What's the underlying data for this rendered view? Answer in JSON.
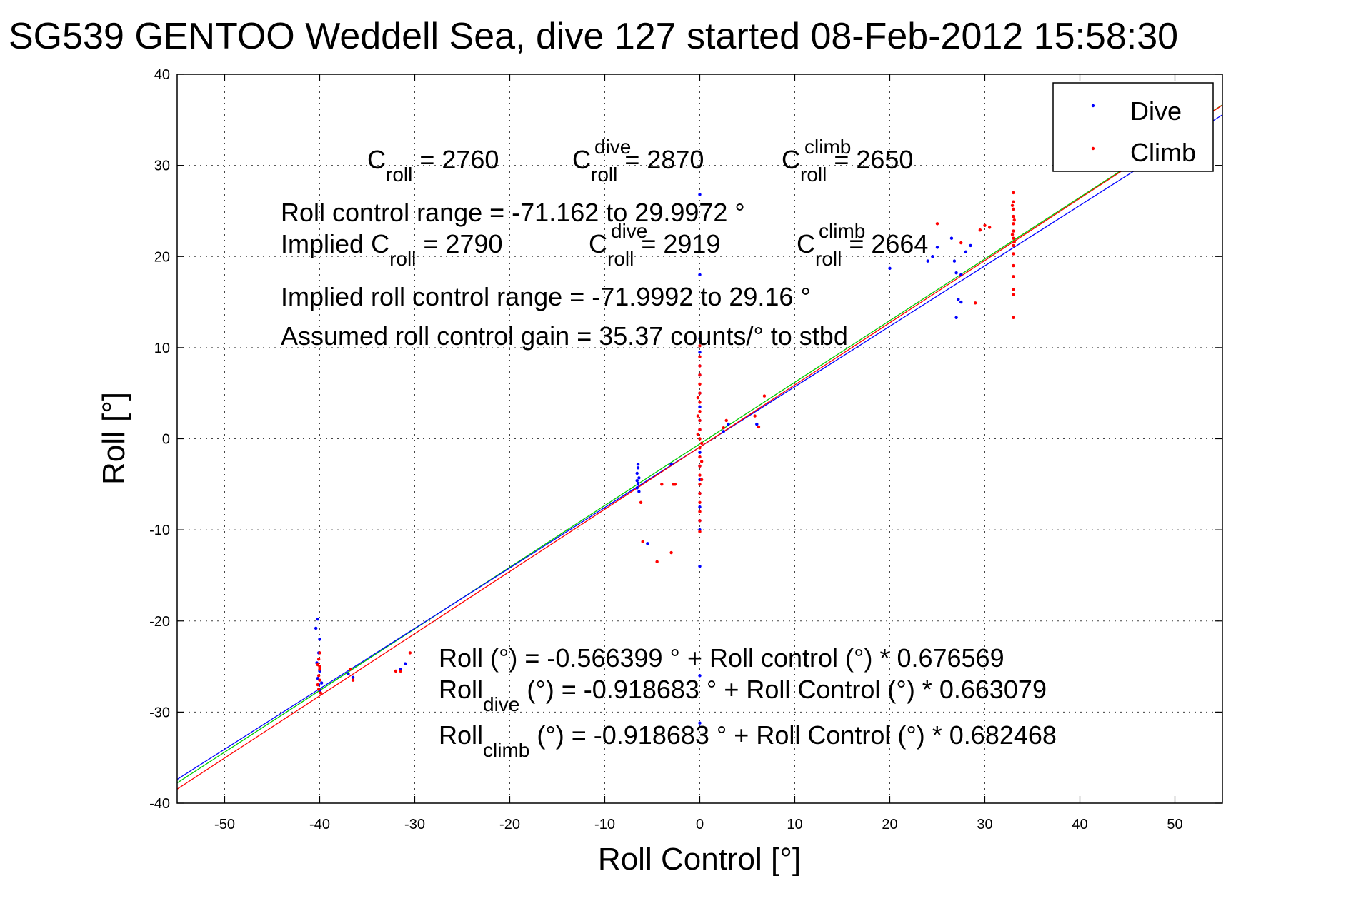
{
  "chart_data": {
    "type": "scatter",
    "title": "SG539 GENTOO Weddell Sea, dive 127 started 08-Feb-2012 15:58:30",
    "xlabel": "Roll Control [°]",
    "ylabel": "Roll [°]",
    "xlim": [
      -55,
      55
    ],
    "ylim": [
      -40,
      40
    ],
    "x_ticks": [
      -50,
      -40,
      -30,
      -20,
      -10,
      0,
      10,
      20,
      30,
      40,
      50
    ],
    "y_ticks": [
      -40,
      -30,
      -20,
      -10,
      0,
      10,
      20,
      30,
      40
    ],
    "grid": true,
    "legend": {
      "placement": "top-right",
      "entries": [
        "Dive",
        "Climb"
      ]
    },
    "colors": {
      "dive": "#0000ff",
      "climb": "#ff0000",
      "fit_all": "#00cc00",
      "fit_dive": "#0000ff",
      "fit_climb": "#ff0000"
    },
    "series": [
      {
        "name": "Dive",
        "color": "#0000ff",
        "points": [
          [
            -40.2,
            -19.8
          ],
          [
            -40.4,
            -20.8
          ],
          [
            -40.0,
            -22.0
          ],
          [
            -40.1,
            -23.5
          ],
          [
            -40.3,
            -24.6
          ],
          [
            -40.0,
            -25.5
          ],
          [
            -40.2,
            -26.3
          ],
          [
            -40.1,
            -27.0
          ],
          [
            -40.0,
            -27.6
          ],
          [
            -39.8,
            -26.8
          ],
          [
            -37.0,
            -25.8
          ],
          [
            -36.5,
            -26.2
          ],
          [
            -31.5,
            -25.3
          ],
          [
            -31.0,
            -24.7
          ],
          [
            -6.5,
            -3.2
          ],
          [
            -6.6,
            -3.8
          ],
          [
            -6.4,
            -4.3
          ],
          [
            -6.5,
            -4.9
          ],
          [
            -6.6,
            -5.4
          ],
          [
            -6.4,
            -5.8
          ],
          [
            -6.5,
            -2.8
          ],
          [
            -6.6,
            -4.6
          ],
          [
            -5.5,
            -11.5
          ],
          [
            -3.0,
            -2.8
          ],
          [
            0.0,
            26.8
          ],
          [
            0.0,
            18.0
          ],
          [
            0.0,
            11.0
          ],
          [
            0.0,
            9.5
          ],
          [
            0.0,
            8.0
          ],
          [
            0.0,
            7.0
          ],
          [
            0.0,
            5.0
          ],
          [
            0.0,
            3.5
          ],
          [
            0.0,
            2.0
          ],
          [
            0.0,
            1.0
          ],
          [
            0.0,
            -1.5
          ],
          [
            0.0,
            -3.0
          ],
          [
            0.0,
            -4.5
          ],
          [
            0.0,
            -6.0
          ],
          [
            0.0,
            -7.5
          ],
          [
            0.0,
            -9.0
          ],
          [
            0.0,
            -10.0
          ],
          [
            0.0,
            -14.0
          ],
          [
            0.0,
            -26.0
          ],
          [
            0.0,
            -31.2
          ],
          [
            2.5,
            0.8
          ],
          [
            3.0,
            1.6
          ],
          [
            6.0,
            1.6
          ],
          [
            20.0,
            18.7
          ],
          [
            24.0,
            19.5
          ],
          [
            24.5,
            20.0
          ],
          [
            25.0,
            21.0
          ],
          [
            26.5,
            22.0
          ],
          [
            26.8,
            19.5
          ],
          [
            27.0,
            18.2
          ],
          [
            27.2,
            15.3
          ],
          [
            27.5,
            15.0
          ],
          [
            27.0,
            13.3
          ],
          [
            27.5,
            18.0
          ],
          [
            28.0,
            20.5
          ],
          [
            28.5,
            21.2
          ]
        ]
      },
      {
        "name": "Climb",
        "color": "#ff0000",
        "points": [
          [
            -40.0,
            -23.5
          ],
          [
            -40.1,
            -24.2
          ],
          [
            -40.2,
            -24.8
          ],
          [
            -40.0,
            -25.3
          ],
          [
            -40.1,
            -26.0
          ],
          [
            -40.0,
            -26.5
          ],
          [
            -40.2,
            -27.0
          ],
          [
            -40.1,
            -27.5
          ],
          [
            -39.9,
            -27.9
          ],
          [
            -40.0,
            -25.0
          ],
          [
            -36.8,
            -25.3
          ],
          [
            -36.5,
            -26.5
          ],
          [
            -32.0,
            -25.5
          ],
          [
            -31.5,
            -25.5
          ],
          [
            -30.5,
            -23.5
          ],
          [
            -6.2,
            -7.0
          ],
          [
            -6.0,
            -11.3
          ],
          [
            -4.5,
            -13.5
          ],
          [
            -4.0,
            -5.0
          ],
          [
            -3.0,
            -12.5
          ],
          [
            -2.8,
            -5.0
          ],
          [
            -2.6,
            -5.0
          ],
          [
            0.0,
            10.2
          ],
          [
            0.0,
            9.0
          ],
          [
            0.0,
            8.0
          ],
          [
            0.0,
            7.0
          ],
          [
            0.0,
            6.0
          ],
          [
            0.0,
            5.0
          ],
          [
            0.0,
            4.0
          ],
          [
            0.0,
            3.0
          ],
          [
            0.0,
            2.0
          ],
          [
            0.0,
            1.0
          ],
          [
            0.0,
            0.0
          ],
          [
            0.0,
            -1.0
          ],
          [
            0.0,
            -2.0
          ],
          [
            0.0,
            -3.0
          ],
          [
            0.0,
            -4.0
          ],
          [
            0.0,
            -5.0
          ],
          [
            0.0,
            -6.0
          ],
          [
            0.0,
            -7.0
          ],
          [
            0.0,
            -8.0
          ],
          [
            0.0,
            -9.0
          ],
          [
            0.0,
            -10.2
          ],
          [
            -0.2,
            0.5
          ],
          [
            0.2,
            -0.5
          ],
          [
            -0.2,
            2.5
          ],
          [
            0.2,
            -2.5
          ],
          [
            -0.2,
            4.5
          ],
          [
            0.2,
            -4.5
          ],
          [
            2.8,
            2.0
          ],
          [
            2.5,
            1.2
          ],
          [
            5.8,
            2.5
          ],
          [
            6.2,
            1.3
          ],
          [
            6.8,
            4.7
          ],
          [
            25.0,
            23.6
          ],
          [
            27.5,
            21.5
          ],
          [
            29.0,
            14.9
          ],
          [
            29.5,
            22.9
          ],
          [
            30.0,
            23.4
          ],
          [
            30.5,
            23.2
          ],
          [
            33.0,
            27.0
          ],
          [
            33.0,
            26.0
          ],
          [
            33.0,
            25.2
          ],
          [
            33.0,
            24.4
          ],
          [
            33.0,
            23.6
          ],
          [
            33.0,
            22.8
          ],
          [
            33.0,
            22.0
          ],
          [
            33.0,
            21.2
          ],
          [
            33.0,
            20.3
          ],
          [
            33.0,
            19.0
          ],
          [
            33.0,
            17.8
          ],
          [
            33.0,
            16.4
          ],
          [
            33.0,
            15.8
          ],
          [
            33.0,
            13.3
          ],
          [
            32.9,
            25.6
          ],
          [
            33.1,
            24.0
          ],
          [
            32.9,
            22.4
          ],
          [
            33.1,
            21.6
          ]
        ]
      }
    ],
    "fit_lines": [
      {
        "name": "Roll",
        "color": "#00cc00",
        "intercept": -0.566399,
        "slope": 0.676569
      },
      {
        "name": "Roll dive",
        "color": "#0000ff",
        "intercept": -0.918683,
        "slope": 0.663079
      },
      {
        "name": "Roll climb",
        "color": "#ff0000",
        "intercept": -0.918683,
        "slope": 0.682468
      }
    ]
  },
  "annotations": {
    "c_roll": {
      "base": "C",
      "sub": "roll",
      "rest": " = 2760"
    },
    "c_roll_dive": {
      "base": "C",
      "sup": "dive",
      "sub": "roll",
      "rest": " = 2870"
    },
    "c_roll_climb": {
      "base": "C",
      "sup": "climb",
      "sub": "roll",
      "rest": " = 2650"
    },
    "roll_control_range": "Roll control range = -71.162 to 29.9972 °",
    "implied_prefix": "Implied ",
    "implied_c_roll": {
      "base": "C",
      "sub": "roll",
      "rest": " = 2790"
    },
    "implied_c_roll_dive": {
      "base": "C",
      "sup": "dive",
      "sub": "roll",
      "rest": " = 2919"
    },
    "implied_c_roll_climb": {
      "base": "C",
      "sup": "climb",
      "sub": "roll",
      "rest": " = 2664"
    },
    "implied_range": "Implied roll control range = -71.9992 to 29.16 °",
    "gain": "Assumed roll control gain = 35.37 counts/° to stbd",
    "fit_all": {
      "base": "Roll",
      "rest": " (°) = -0.566399 ° + Roll control (°) * 0.676569"
    },
    "fit_dive": {
      "base": "Roll",
      "sub": "dive",
      "rest": " (°) = -0.918683 ° + Roll Control (°) * 0.663079"
    },
    "fit_climb": {
      "base": "Roll",
      "sub": "climb",
      "rest": " (°) = -0.918683 ° + Roll Control (°) * 0.682468"
    }
  }
}
